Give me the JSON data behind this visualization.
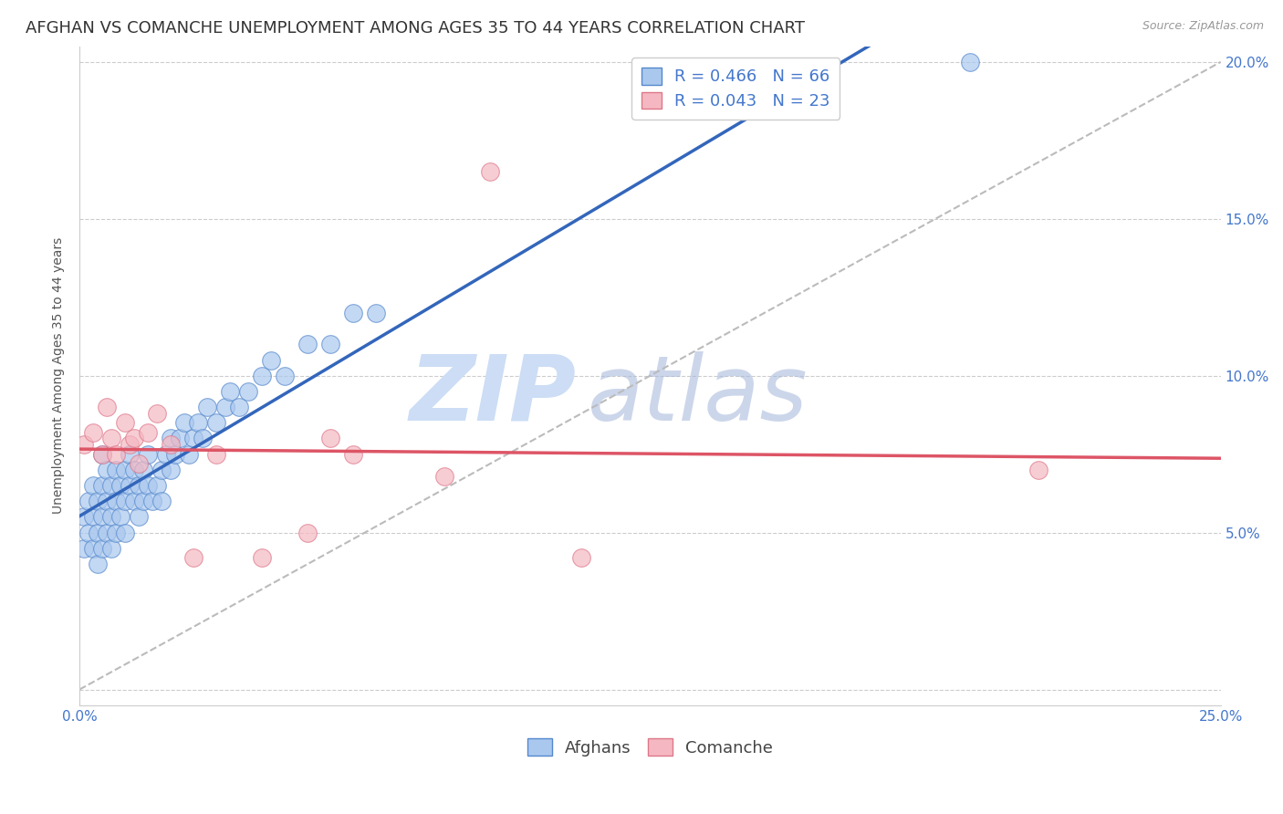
{
  "title": "AFGHAN VS COMANCHE UNEMPLOYMENT AMONG AGES 35 TO 44 YEARS CORRELATION CHART",
  "source": "Source: ZipAtlas.com",
  "ylabel": "Unemployment Among Ages 35 to 44 years",
  "xlim": [
    0.0,
    0.25
  ],
  "ylim": [
    -0.005,
    0.205
  ],
  "xticks": [
    0.0,
    0.05,
    0.1,
    0.15,
    0.2,
    0.25
  ],
  "yticks": [
    0.0,
    0.05,
    0.1,
    0.15,
    0.2
  ],
  "xticklabels": [
    "0.0%",
    "",
    "",
    "",
    "",
    "25.0%"
  ],
  "yticklabels_left": [
    "",
    "",
    "",
    "",
    ""
  ],
  "yticklabels_right": [
    "",
    "5.0%",
    "10.0%",
    "15.0%",
    "20.0%"
  ],
  "afghan_R": 0.466,
  "afghan_N": 66,
  "comanche_R": 0.043,
  "comanche_N": 23,
  "afghan_color": "#aac8ee",
  "comanche_color": "#f5b8c2",
  "afghan_edge_color": "#5588cc",
  "comanche_edge_color": "#dd7788",
  "afghan_line_color": "#3366bb",
  "comanche_line_color": "#dd5566",
  "ref_line_color": "#bbbbbb",
  "grid_color": "#cccccc",
  "background_color": "#ffffff",
  "watermark_color": "#ccddf5",
  "tick_color": "#4477cc",
  "title_fontsize": 13,
  "axis_label_fontsize": 10,
  "tick_fontsize": 11,
  "legend_fontsize": 13,
  "afghan_x": [
    0.001,
    0.001,
    0.002,
    0.002,
    0.003,
    0.003,
    0.003,
    0.004,
    0.004,
    0.004,
    0.005,
    0.005,
    0.005,
    0.005,
    0.006,
    0.006,
    0.006,
    0.007,
    0.007,
    0.007,
    0.008,
    0.008,
    0.008,
    0.009,
    0.009,
    0.01,
    0.01,
    0.01,
    0.011,
    0.011,
    0.012,
    0.012,
    0.013,
    0.013,
    0.014,
    0.014,
    0.015,
    0.015,
    0.016,
    0.017,
    0.018,
    0.018,
    0.019,
    0.02,
    0.02,
    0.021,
    0.022,
    0.023,
    0.024,
    0.025,
    0.026,
    0.027,
    0.028,
    0.03,
    0.032,
    0.033,
    0.035,
    0.037,
    0.04,
    0.042,
    0.045,
    0.05,
    0.055,
    0.06,
    0.065,
    0.195
  ],
  "afghan_y": [
    0.055,
    0.045,
    0.06,
    0.05,
    0.055,
    0.065,
    0.045,
    0.06,
    0.05,
    0.04,
    0.055,
    0.065,
    0.045,
    0.075,
    0.06,
    0.05,
    0.07,
    0.055,
    0.065,
    0.045,
    0.06,
    0.05,
    0.07,
    0.055,
    0.065,
    0.06,
    0.07,
    0.05,
    0.065,
    0.075,
    0.06,
    0.07,
    0.055,
    0.065,
    0.06,
    0.07,
    0.065,
    0.075,
    0.06,
    0.065,
    0.07,
    0.06,
    0.075,
    0.07,
    0.08,
    0.075,
    0.08,
    0.085,
    0.075,
    0.08,
    0.085,
    0.08,
    0.09,
    0.085,
    0.09,
    0.095,
    0.09,
    0.095,
    0.1,
    0.105,
    0.1,
    0.11,
    0.11,
    0.12,
    0.12,
    0.2
  ],
  "comanche_x": [
    0.001,
    0.003,
    0.005,
    0.006,
    0.007,
    0.008,
    0.01,
    0.011,
    0.012,
    0.013,
    0.015,
    0.017,
    0.02,
    0.025,
    0.03,
    0.04,
    0.05,
    0.055,
    0.06,
    0.08,
    0.09,
    0.11,
    0.21
  ],
  "comanche_y": [
    0.078,
    0.082,
    0.075,
    0.09,
    0.08,
    0.075,
    0.085,
    0.078,
    0.08,
    0.072,
    0.082,
    0.088,
    0.078,
    0.042,
    0.075,
    0.042,
    0.05,
    0.08,
    0.075,
    0.068,
    0.165,
    0.042,
    0.07
  ],
  "afghan_trendline_x0": 0.0,
  "afghan_trendline_x1": 0.25,
  "comanche_trendline_x0": 0.0,
  "comanche_trendline_x1": 0.25,
  "ref_line_x": [
    0.0,
    0.25
  ],
  "ref_line_y": [
    0.0,
    0.2
  ]
}
